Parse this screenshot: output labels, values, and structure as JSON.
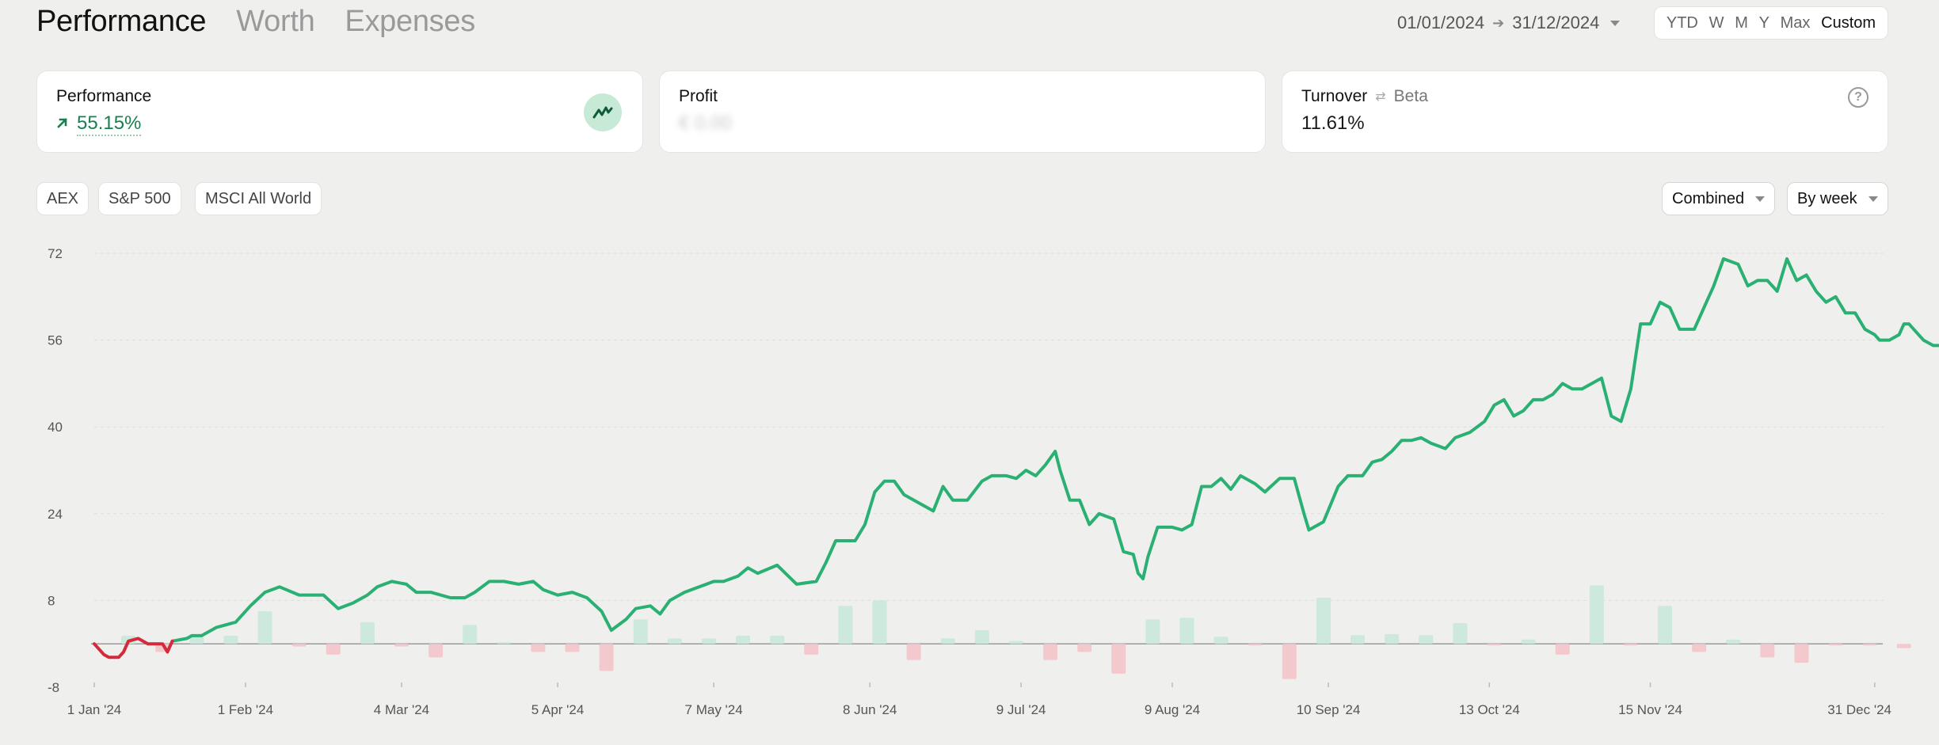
{
  "header": {
    "tabs": [
      {
        "label": "Performance",
        "active": true
      },
      {
        "label": "Worth",
        "active": false
      },
      {
        "label": "Expenses",
        "active": false
      }
    ],
    "date_from": "01/01/2024",
    "date_to": "31/12/2024",
    "periods": [
      {
        "label": "YTD",
        "active": false
      },
      {
        "label": "W",
        "active": false
      },
      {
        "label": "M",
        "active": false
      },
      {
        "label": "Y",
        "active": false
      },
      {
        "label": "Max",
        "active": false
      },
      {
        "label": "Custom",
        "active": true
      }
    ]
  },
  "cards": {
    "performance": {
      "title": "Performance",
      "value": "55.15%",
      "icon": "trend-up-icon"
    },
    "profit": {
      "title": "Profit",
      "value": "€ 0.00",
      "hidden": true
    },
    "turnover": {
      "title": "Turnover",
      "beta_label": "Beta",
      "value": "11.61%"
    }
  },
  "benchmarks": [
    "AEX",
    "S&P 500",
    "MSCI All World"
  ],
  "controls": {
    "mode": "Combined",
    "interval": "By week"
  },
  "colors": {
    "positive": "#2bb074",
    "negative": "#d42b3c",
    "bar_positive": "#cde8dc",
    "bar_negative": "#f3c9ce",
    "background": "#eff0ee"
  },
  "chart_data": {
    "type": "line",
    "ylim": [
      -8,
      72
    ],
    "yticks": [
      -8,
      8,
      24,
      40,
      56,
      72
    ],
    "xtick_labels": [
      "1 Jan '24",
      "1 Feb '24",
      "4 Mar '24",
      "5 Apr '24",
      "7 May '24",
      "8 Jun '24",
      "9 Jul '24",
      "9 Aug '24",
      "10 Sep '24",
      "13 Oct '24",
      "15 Nov '24",
      "31 Dec '24"
    ],
    "xtick_days": [
      0,
      31,
      63,
      95,
      127,
      159,
      190,
      221,
      253,
      286,
      319,
      365
    ],
    "grid": true,
    "series": [
      {
        "role": "cumulative performance (%)",
        "points": [
          [
            0,
            0
          ],
          [
            2,
            -2
          ],
          [
            3,
            -2.5
          ],
          [
            5,
            -2.5
          ],
          [
            6,
            -1.5
          ],
          [
            7,
            0.5
          ],
          [
            9,
            1
          ],
          [
            11,
            0
          ],
          [
            14,
            0
          ],
          [
            15,
            -1.5
          ],
          [
            16,
            0.5
          ],
          [
            19,
            1
          ],
          [
            20,
            1.5
          ],
          [
            22,
            1.5
          ],
          [
            25,
            3
          ],
          [
            29,
            4
          ],
          [
            32,
            7
          ],
          [
            35,
            9.5
          ],
          [
            38,
            10.5
          ],
          [
            42,
            9
          ],
          [
            47,
            9
          ],
          [
            50,
            6.5
          ],
          [
            53,
            7.5
          ],
          [
            56,
            9
          ],
          [
            58,
            10.5
          ],
          [
            61,
            11.5
          ],
          [
            64,
            11
          ],
          [
            66,
            9.5
          ],
          [
            69,
            9.5
          ],
          [
            73,
            8.5
          ],
          [
            76,
            8.5
          ],
          [
            78,
            9.5
          ],
          [
            81,
            11.5
          ],
          [
            84,
            11.5
          ],
          [
            87,
            11
          ],
          [
            90,
            11.5
          ],
          [
            92,
            10
          ],
          [
            95,
            9
          ],
          [
            98,
            9.5
          ],
          [
            101,
            8.5
          ],
          [
            104,
            6
          ],
          [
            106,
            2.5
          ],
          [
            109,
            4.5
          ],
          [
            111,
            6.5
          ],
          [
            114,
            7
          ],
          [
            116,
            5.5
          ],
          [
            118,
            8
          ],
          [
            121,
            9.5
          ],
          [
            124,
            10.5
          ],
          [
            127,
            11.5
          ],
          [
            129,
            11.5
          ],
          [
            132,
            12.5
          ],
          [
            134,
            14
          ],
          [
            136,
            13
          ],
          [
            140,
            14.5
          ],
          [
            144,
            11
          ],
          [
            148,
            11.5
          ],
          [
            150,
            15
          ],
          [
            152,
            19
          ],
          [
            156,
            19
          ],
          [
            158,
            22
          ],
          [
            160,
            28
          ],
          [
            162,
            30
          ],
          [
            164,
            30
          ],
          [
            166,
            27.5
          ],
          [
            169,
            26
          ],
          [
            172,
            24.5
          ],
          [
            174,
            29
          ],
          [
            176,
            26.5
          ],
          [
            179,
            26.5
          ],
          [
            182,
            30
          ],
          [
            184,
            31
          ],
          [
            187,
            31
          ],
          [
            189,
            30.5
          ],
          [
            191,
            32
          ],
          [
            193,
            31
          ],
          [
            195,
            33
          ],
          [
            197,
            35.5
          ],
          [
            198,
            32
          ],
          [
            200,
            26.5
          ],
          [
            202,
            26.5
          ],
          [
            204,
            22
          ],
          [
            206,
            24
          ],
          [
            209,
            23
          ],
          [
            211,
            17
          ],
          [
            213,
            16.5
          ],
          [
            214,
            13
          ],
          [
            215,
            12
          ],
          [
            216,
            16
          ],
          [
            218,
            21.5
          ],
          [
            221,
            21.5
          ],
          [
            223,
            21
          ],
          [
            225,
            22
          ],
          [
            227,
            29
          ],
          [
            229,
            29
          ],
          [
            231,
            30.5
          ],
          [
            233,
            28.5
          ],
          [
            235,
            31
          ],
          [
            238,
            29.5
          ],
          [
            240,
            28
          ],
          [
            243,
            30.5
          ],
          [
            246,
            30.5
          ],
          [
            248,
            24
          ],
          [
            249,
            21
          ],
          [
            252,
            22.5
          ],
          [
            255,
            29
          ],
          [
            257,
            31
          ],
          [
            260,
            31
          ],
          [
            262,
            33.5
          ],
          [
            264,
            34
          ],
          [
            266,
            35.5
          ],
          [
            268,
            37.5
          ],
          [
            270,
            37.5
          ],
          [
            272,
            38
          ],
          [
            274,
            37
          ],
          [
            277,
            36
          ],
          [
            279,
            38
          ],
          [
            282,
            39
          ],
          [
            285,
            41
          ],
          [
            287,
            44
          ],
          [
            289,
            45
          ],
          [
            291,
            42
          ],
          [
            293,
            43
          ],
          [
            295,
            45
          ],
          [
            297,
            45
          ],
          [
            299,
            46
          ],
          [
            301,
            48
          ],
          [
            303,
            47
          ],
          [
            305,
            47
          ],
          [
            307,
            48
          ],
          [
            309,
            49
          ],
          [
            311,
            42
          ],
          [
            313,
            41
          ],
          [
            315,
            47
          ],
          [
            317,
            59
          ],
          [
            319,
            59
          ],
          [
            321,
            63
          ],
          [
            323,
            62
          ],
          [
            325,
            58
          ],
          [
            328,
            58
          ],
          [
            330,
            62
          ],
          [
            332,
            66
          ],
          [
            334,
            71
          ],
          [
            337,
            70
          ],
          [
            339,
            66
          ],
          [
            341,
            67
          ],
          [
            343,
            67
          ],
          [
            345,
            65
          ],
          [
            347,
            71
          ],
          [
            349,
            67
          ],
          [
            351,
            68
          ],
          [
            353,
            65
          ],
          [
            355,
            63
          ],
          [
            357,
            64
          ],
          [
            359,
            61
          ],
          [
            361,
            61
          ],
          [
            363,
            58
          ],
          [
            365,
            57
          ],
          [
            366,
            56
          ],
          [
            368,
            56
          ],
          [
            370,
            57
          ],
          [
            371,
            59
          ],
          [
            372,
            59
          ],
          [
            374,
            57
          ],
          [
            375,
            56
          ],
          [
            377,
            55
          ],
          [
            379,
            55
          ],
          [
            381,
            55.1
          ]
        ]
      }
    ],
    "weekly_bars": [
      [
        7,
        1.5
      ],
      [
        14,
        -1.5
      ],
      [
        21,
        1.5
      ],
      [
        28,
        1.5
      ],
      [
        35,
        6
      ],
      [
        42,
        -0.5
      ],
      [
        49,
        -2
      ],
      [
        56,
        4
      ],
      [
        63,
        -0.5
      ],
      [
        70,
        -2.5
      ],
      [
        77,
        3.5
      ],
      [
        84,
        0.3
      ],
      [
        91,
        -1.5
      ],
      [
        98,
        -1.5
      ],
      [
        105,
        -5
      ],
      [
        112,
        4.5
      ],
      [
        119,
        1
      ],
      [
        126,
        1
      ],
      [
        133,
        1.5
      ],
      [
        140,
        1.5
      ],
      [
        147,
        -2
      ],
      [
        154,
        7
      ],
      [
        161,
        8
      ],
      [
        168,
        -3
      ],
      [
        175,
        1
      ],
      [
        182,
        2.5
      ],
      [
        189,
        0.5
      ],
      [
        196,
        -3
      ],
      [
        203,
        -1.5
      ],
      [
        210,
        -5.5
      ],
      [
        217,
        4.5
      ],
      [
        224,
        4.8
      ],
      [
        231,
        1.3
      ],
      [
        238,
        -0.3
      ],
      [
        245,
        -6.5
      ],
      [
        252,
        8.5
      ],
      [
        259,
        1.6
      ],
      [
        266,
        1.8
      ],
      [
        273,
        1.6
      ],
      [
        280,
        3.8
      ],
      [
        287,
        -0.3
      ],
      [
        294,
        0.8
      ],
      [
        301,
        -2
      ],
      [
        308,
        10.8
      ],
      [
        315,
        -0.3
      ],
      [
        322,
        7
      ],
      [
        329,
        -1.5
      ],
      [
        336,
        0.8
      ],
      [
        343,
        -2.5
      ],
      [
        350,
        -3.5
      ],
      [
        357,
        -0.3
      ],
      [
        364,
        -0.3
      ],
      [
        371,
        -0.8
      ]
    ]
  }
}
